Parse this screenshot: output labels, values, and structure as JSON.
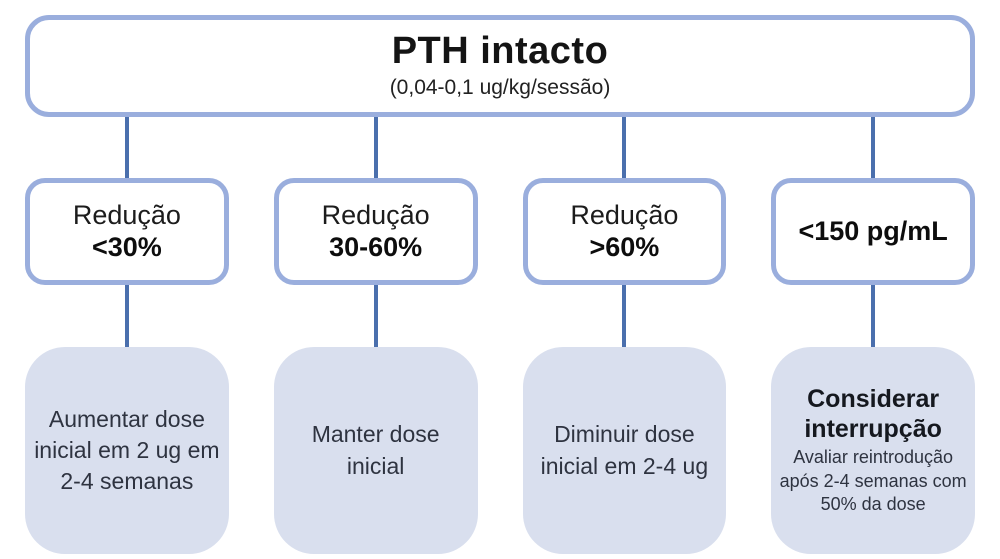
{
  "header": {
    "title": "PTH intacto",
    "subtitle": "(0,04-0,1 ug/kg/sessão)"
  },
  "branches": [
    {
      "id": "reducao-menor-30",
      "condition_top": "Redução",
      "condition_bottom": "<30%",
      "action_text": "Aumentar dose inicial em 2 ug em 2-4 semanas"
    },
    {
      "id": "reducao-30-60",
      "condition_top": "Redução",
      "condition_bottom": "30-60%",
      "action_text": "Manter dose inicial"
    },
    {
      "id": "reducao-maior-60",
      "condition_top": "Redução",
      "condition_bottom": ">60%",
      "action_text": "Diminuir dose inicial em 2-4 ug"
    },
    {
      "id": "pth-menor-150",
      "condition_single": "<150 pg/mL",
      "action_title": "Considerar interrupção",
      "action_text": "Avaliar reintrodução após 2-4 semanas com 50% da dose"
    }
  ],
  "colors": {
    "box_border": "#9aaedd",
    "connector": "#4a6fad",
    "action_fill": "#d9dfee",
    "condition_text": "#141414",
    "action_text": "#2e3340",
    "canvas_bg": "#ffffff"
  }
}
